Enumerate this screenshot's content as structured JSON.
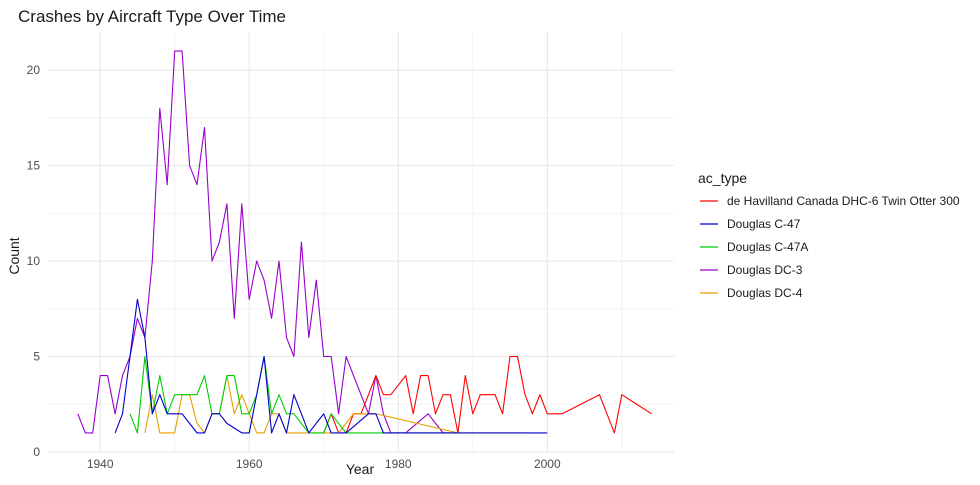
{
  "chart_data": {
    "type": "line",
    "title": "Crashes by Aircraft Type Over Time",
    "xlabel": "Year",
    "ylabel": "Count",
    "xlim": [
      1933,
      2017
    ],
    "ylim": [
      0,
      22
    ],
    "x_ticks": [
      1940,
      1960,
      1980,
      2000
    ],
    "y_ticks": [
      0,
      5,
      10,
      15,
      20
    ],
    "grid": true,
    "legend": {
      "title": "ac_type",
      "position": "right"
    },
    "series": [
      {
        "name": "de Havilland Canada DHC-6 Twin Otter 300",
        "color": "#ff0000",
        "points": [
          [
            1970,
            1
          ],
          [
            1971,
            2
          ],
          [
            1972,
            1
          ],
          [
            1973,
            1
          ],
          [
            1974,
            2
          ],
          [
            1975,
            2
          ],
          [
            1976,
            3
          ],
          [
            1977,
            4
          ],
          [
            1978,
            3
          ],
          [
            1979,
            3
          ],
          [
            1980,
            3.5
          ],
          [
            1981,
            4
          ],
          [
            1982,
            2
          ],
          [
            1983,
            4
          ],
          [
            1984,
            4
          ],
          [
            1985,
            2
          ],
          [
            1986,
            3
          ],
          [
            1987,
            3
          ],
          [
            1988,
            1
          ],
          [
            1989,
            4
          ],
          [
            1990,
            2
          ],
          [
            1991,
            3
          ],
          [
            1992,
            3
          ],
          [
            1993,
            3
          ],
          [
            1994,
            2
          ],
          [
            1995,
            5
          ],
          [
            1996,
            5
          ],
          [
            1997,
            3
          ],
          [
            1998,
            2
          ],
          [
            1999,
            3
          ],
          [
            2000,
            2
          ],
          [
            2001,
            2
          ],
          [
            2002,
            2
          ],
          [
            2007,
            3
          ],
          [
            2009,
            1
          ],
          [
            2010,
            3
          ],
          [
            2014,
            2
          ]
        ]
      },
      {
        "name": "Douglas C-47",
        "color": "#0000cc",
        "points": [
          [
            1942,
            1
          ],
          [
            1943,
            2
          ],
          [
            1944,
            5
          ],
          [
            1945,
            8
          ],
          [
            1946,
            6
          ],
          [
            1947,
            2
          ],
          [
            1948,
            3
          ],
          [
            1949,
            2
          ],
          [
            1950,
            2
          ],
          [
            1951,
            2
          ],
          [
            1952,
            1.5
          ],
          [
            1953,
            1
          ],
          [
            1954,
            1
          ],
          [
            1955,
            2
          ],
          [
            1956,
            2
          ],
          [
            1957,
            1.5
          ],
          [
            1959,
            1
          ],
          [
            1960,
            1
          ],
          [
            1961,
            3
          ],
          [
            1962,
            5
          ],
          [
            1963,
            1
          ],
          [
            1964,
            2
          ],
          [
            1965,
            1
          ],
          [
            1966,
            3
          ],
          [
            1967,
            2
          ],
          [
            1968,
            1
          ],
          [
            1970,
            2
          ],
          [
            1971,
            1
          ],
          [
            1973,
            1
          ],
          [
            1976,
            2
          ],
          [
            1977,
            2
          ],
          [
            1978,
            1
          ],
          [
            1980,
            1
          ],
          [
            1988,
            1
          ],
          [
            1995,
            1
          ],
          [
            1996,
            1
          ],
          [
            2000,
            1
          ]
        ]
      },
      {
        "name": "Douglas C-47A",
        "color": "#00cc00",
        "points": [
          [
            1944,
            2
          ],
          [
            1945,
            1
          ],
          [
            1946,
            5
          ],
          [
            1947,
            2
          ],
          [
            1948,
            4
          ],
          [
            1949,
            2
          ],
          [
            1950,
            3
          ],
          [
            1951,
            3
          ],
          [
            1952,
            3
          ],
          [
            1953,
            3
          ],
          [
            1954,
            4
          ],
          [
            1955,
            2
          ],
          [
            1956,
            2
          ],
          [
            1957,
            4
          ],
          [
            1958,
            4
          ],
          [
            1959,
            2
          ],
          [
            1960,
            2
          ],
          [
            1961,
            3
          ],
          [
            1962,
            5
          ],
          [
            1963,
            2
          ],
          [
            1964,
            3
          ],
          [
            1965,
            2
          ],
          [
            1966,
            2
          ],
          [
            1968,
            1
          ],
          [
            1969,
            1
          ],
          [
            1970,
            1
          ],
          [
            1971,
            2
          ],
          [
            1972,
            1.5
          ],
          [
            1973,
            1
          ],
          [
            1975,
            1
          ],
          [
            1988,
            1
          ]
        ]
      },
      {
        "name": "Douglas DC-3",
        "color": "#9900cc",
        "points": [
          [
            1937,
            2
          ],
          [
            1938,
            1
          ],
          [
            1939,
            1
          ],
          [
            1940,
            4
          ],
          [
            1941,
            4
          ],
          [
            1942,
            2
          ],
          [
            1943,
            4
          ],
          [
            1944,
            5
          ],
          [
            1945,
            7
          ],
          [
            1946,
            6
          ],
          [
            1947,
            10
          ],
          [
            1948,
            18
          ],
          [
            1949,
            14
          ],
          [
            1950,
            21
          ],
          [
            1951,
            21
          ],
          [
            1952,
            15
          ],
          [
            1953,
            14
          ],
          [
            1954,
            17
          ],
          [
            1955,
            10
          ],
          [
            1956,
            11
          ],
          [
            1957,
            13
          ],
          [
            1958,
            7
          ],
          [
            1959,
            13
          ],
          [
            1960,
            8
          ],
          [
            1961,
            10
          ],
          [
            1962,
            9
          ],
          [
            1963,
            7
          ],
          [
            1964,
            10
          ],
          [
            1965,
            6
          ],
          [
            1966,
            5
          ],
          [
            1967,
            11
          ],
          [
            1968,
            6
          ],
          [
            1969,
            9
          ],
          [
            1970,
            5
          ],
          [
            1971,
            5
          ],
          [
            1972,
            2
          ],
          [
            1973,
            5
          ],
          [
            1974,
            4
          ],
          [
            1975,
            3
          ],
          [
            1976,
            2
          ],
          [
            1977,
            4
          ],
          [
            1978,
            2
          ],
          [
            1979,
            1
          ],
          [
            1980,
            1
          ],
          [
            1981,
            1
          ],
          [
            1984,
            2
          ],
          [
            1986,
            1
          ],
          [
            1987,
            1
          ]
        ]
      },
      {
        "name": "Douglas DC-4",
        "color": "#e69f00",
        "points": [
          [
            1946,
            1
          ],
          [
            1947,
            3
          ],
          [
            1948,
            1
          ],
          [
            1949,
            1
          ],
          [
            1950,
            1
          ],
          [
            1951,
            3
          ],
          [
            1952,
            3
          ],
          [
            1953,
            1.5
          ],
          [
            1954,
            1
          ],
          [
            1955,
            2
          ],
          [
            1956,
            2
          ],
          [
            1957,
            4
          ],
          [
            1958,
            2
          ],
          [
            1959,
            3
          ],
          [
            1960,
            2
          ],
          [
            1961,
            1
          ],
          [
            1962,
            1
          ],
          [
            1963,
            2
          ],
          [
            1964,
            2
          ],
          [
            1965,
            1
          ],
          [
            1967,
            1
          ],
          [
            1969,
            1
          ],
          [
            1970,
            1
          ],
          [
            1972,
            1
          ],
          [
            1974,
            2
          ],
          [
            1975,
            2
          ],
          [
            1976,
            2
          ],
          [
            1977,
            2
          ],
          [
            1988,
            1
          ],
          [
            1997,
            1
          ]
        ]
      }
    ]
  }
}
